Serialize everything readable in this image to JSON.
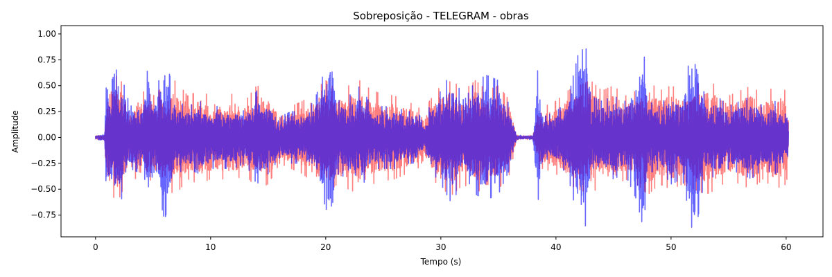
{
  "chart_data": {
    "type": "line",
    "title": "Sobreposição - TELEGRAM - obras",
    "xlabel": "Tempo (s)",
    "ylabel": "Amplitude",
    "xlim": [
      -3,
      63.2
    ],
    "ylim": [
      -0.96,
      1.08
    ],
    "x_ticks": [
      0,
      10,
      20,
      30,
      40,
      50,
      60
    ],
    "y_ticks": [
      -0.75,
      -0.5,
      -0.25,
      0.0,
      0.25,
      0.5,
      0.75,
      1.0
    ],
    "y_tick_labels": [
      "−0.75",
      "−0.50",
      "−0.25",
      "0.00",
      "0.25",
      "0.50",
      "0.75",
      "1.00"
    ],
    "grid": false,
    "legend": "none",
    "duration_s": 60.2,
    "series": [
      {
        "color": "#ff0000",
        "alpha": 0.5,
        "envelope": [
          [
            0,
            0.02
          ],
          [
            0.8,
            0.03
          ],
          [
            1.0,
            0.55
          ],
          [
            2.0,
            0.6
          ],
          [
            3.0,
            0.35
          ],
          [
            4.0,
            0.45
          ],
          [
            5.0,
            0.4
          ],
          [
            6.0,
            0.5
          ],
          [
            7.0,
            0.55
          ],
          [
            8.0,
            0.4
          ],
          [
            9.0,
            0.45
          ],
          [
            10.0,
            0.4
          ],
          [
            11.0,
            0.4
          ],
          [
            12.0,
            0.42
          ],
          [
            13.0,
            0.35
          ],
          [
            14.0,
            0.5
          ],
          [
            15.0,
            0.45
          ],
          [
            16.0,
            0.25
          ],
          [
            17.0,
            0.3
          ],
          [
            18.0,
            0.35
          ],
          [
            19.0,
            0.45
          ],
          [
            20.0,
            0.55
          ],
          [
            21.0,
            0.45
          ],
          [
            22.0,
            0.5
          ],
          [
            23.0,
            0.55
          ],
          [
            24.0,
            0.45
          ],
          [
            25.0,
            0.42
          ],
          [
            26.0,
            0.4
          ],
          [
            27.0,
            0.35
          ],
          [
            28.0,
            0.3
          ],
          [
            28.6,
            0.2
          ],
          [
            29.0,
            0.35
          ],
          [
            30.0,
            0.5
          ],
          [
            31.0,
            0.55
          ],
          [
            32.0,
            0.45
          ],
          [
            33.0,
            0.55
          ],
          [
            34.0,
            0.45
          ],
          [
            35.0,
            0.5
          ],
          [
            36.0,
            0.35
          ],
          [
            36.6,
            0.02
          ],
          [
            38.0,
            0.02
          ],
          [
            38.4,
            0.3
          ],
          [
            39.0,
            0.3
          ],
          [
            40.0,
            0.35
          ],
          [
            41.0,
            0.45
          ],
          [
            42.0,
            0.5
          ],
          [
            43.0,
            0.55
          ],
          [
            44.0,
            0.45
          ],
          [
            45.0,
            0.5
          ],
          [
            46.0,
            0.4
          ],
          [
            47.0,
            0.45
          ],
          [
            48.0,
            0.55
          ],
          [
            49.0,
            0.45
          ],
          [
            50.0,
            0.5
          ],
          [
            51.0,
            0.45
          ],
          [
            52.0,
            0.5
          ],
          [
            53.0,
            0.55
          ],
          [
            54.0,
            0.5
          ],
          [
            55.0,
            0.4
          ],
          [
            56.0,
            0.45
          ],
          [
            57.0,
            0.5
          ],
          [
            58.0,
            0.4
          ],
          [
            59.0,
            0.5
          ],
          [
            60.0,
            0.45
          ],
          [
            60.2,
            0.3
          ]
        ]
      },
      {
        "color": "#0000ff",
        "alpha": 0.6,
        "envelope": [
          [
            0,
            0.02
          ],
          [
            0.8,
            0.03
          ],
          [
            0.9,
            0.72
          ],
          [
            1.0,
            0.45
          ],
          [
            2.0,
            0.7
          ],
          [
            3.0,
            0.3
          ],
          [
            4.0,
            0.35
          ],
          [
            4.6,
            0.7
          ],
          [
            5.0,
            0.3
          ],
          [
            6.0,
            0.8
          ],
          [
            7.0,
            0.35
          ],
          [
            8.0,
            0.3
          ],
          [
            9.0,
            0.35
          ],
          [
            10.0,
            0.3
          ],
          [
            11.0,
            0.3
          ],
          [
            12.0,
            0.3
          ],
          [
            13.0,
            0.25
          ],
          [
            14.0,
            0.45
          ],
          [
            15.0,
            0.35
          ],
          [
            16.0,
            0.2
          ],
          [
            17.0,
            0.25
          ],
          [
            18.0,
            0.25
          ],
          [
            19.0,
            0.35
          ],
          [
            20.0,
            0.68
          ],
          [
            20.6,
            0.87
          ],
          [
            21.0,
            0.35
          ],
          [
            22.0,
            0.4
          ],
          [
            23.0,
            0.5
          ],
          [
            24.0,
            0.3
          ],
          [
            25.0,
            0.3
          ],
          [
            26.0,
            0.3
          ],
          [
            27.0,
            0.25
          ],
          [
            28.0,
            0.25
          ],
          [
            28.6,
            0.1
          ],
          [
            29.0,
            0.3
          ],
          [
            30.0,
            0.45
          ],
          [
            31.0,
            0.65
          ],
          [
            32.0,
            0.35
          ],
          [
            33.0,
            0.55
          ],
          [
            34.0,
            0.6
          ],
          [
            35.0,
            0.55
          ],
          [
            36.0,
            0.3
          ],
          [
            36.6,
            0.02
          ],
          [
            38.0,
            0.02
          ],
          [
            38.4,
            0.65
          ],
          [
            39.0,
            0.2
          ],
          [
            40.0,
            0.25
          ],
          [
            41.0,
            0.35
          ],
          [
            42.0,
            0.84
          ],
          [
            42.8,
            0.86
          ],
          [
            43.0,
            0.4
          ],
          [
            44.0,
            0.35
          ],
          [
            45.0,
            0.4
          ],
          [
            46.0,
            0.35
          ],
          [
            47.0,
            0.6
          ],
          [
            47.6,
            0.88
          ],
          [
            48.0,
            0.35
          ],
          [
            49.0,
            0.3
          ],
          [
            50.0,
            0.45
          ],
          [
            51.0,
            0.4
          ],
          [
            52.0,
            0.99
          ],
          [
            53.0,
            0.35
          ],
          [
            54.0,
            0.4
          ],
          [
            55.0,
            0.3
          ],
          [
            56.0,
            0.35
          ],
          [
            57.0,
            0.4
          ],
          [
            58.0,
            0.3
          ],
          [
            59.0,
            0.35
          ],
          [
            60.0,
            0.3
          ],
          [
            60.2,
            0.2
          ]
        ]
      }
    ]
  }
}
